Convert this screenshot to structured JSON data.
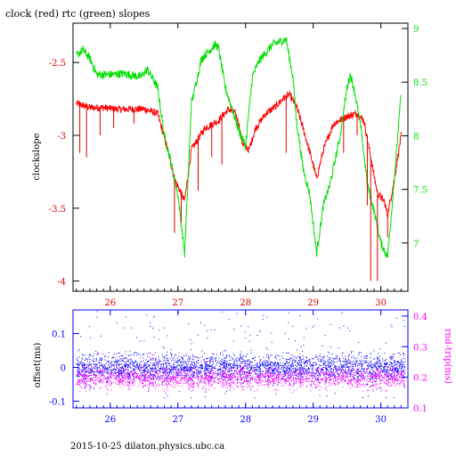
{
  "chart_data": [
    {
      "type": "line",
      "title": "clock (red) rtc (green) slopes",
      "ylabel": "clockslope",
      "y2label": "",
      "xlim": [
        25.45,
        30.4
      ],
      "ylim": [
        -4.07,
        -2.23
      ],
      "y2lim": [
        6.55,
        9.05
      ],
      "x_ticks": [
        26,
        27,
        28,
        29,
        30
      ],
      "x_tick_labels": [
        "26",
        "27",
        "28",
        "29",
        "30"
      ],
      "y_ticks": [
        -2.5,
        -3,
        -3.5,
        -4
      ],
      "y_tick_labels": [
        "-2.5",
        "-3",
        "-3.5",
        "-4"
      ],
      "y2_ticks": [
        9,
        8.5,
        8,
        7.5,
        7
      ],
      "y2_tick_labels": [
        "9",
        "8.5",
        "8",
        "7.5",
        "7"
      ],
      "colors": {
        "frame": "#000000",
        "left_axis": "#e00000",
        "right_axis": "#00e000",
        "x_axis": "#e00000"
      },
      "series": [
        {
          "name": "clock",
          "color": "#ff0000",
          "axis": "left",
          "x": [
            25.5,
            25.7,
            25.9,
            26.1,
            26.3,
            26.5,
            26.7,
            26.85,
            26.95,
            27.05,
            27.1,
            27.2,
            27.4,
            27.6,
            27.75,
            27.85,
            27.9,
            27.95,
            28.05,
            28.15,
            28.3,
            28.45,
            28.55,
            28.65,
            28.75,
            28.85,
            29.0,
            29.05,
            29.15,
            29.3,
            29.5,
            29.65,
            29.75,
            29.85,
            29.95,
            30.05,
            30.1,
            30.2,
            30.3
          ],
          "y": [
            -2.78,
            -2.81,
            -2.81,
            -2.82,
            -2.82,
            -2.82,
            -2.85,
            -3.1,
            -3.3,
            -3.4,
            -3.45,
            -3.1,
            -2.95,
            -2.9,
            -2.82,
            -2.85,
            -2.92,
            -3.05,
            -3.1,
            -2.95,
            -2.85,
            -2.8,
            -2.75,
            -2.72,
            -2.8,
            -2.95,
            -3.2,
            -3.3,
            -3.1,
            -2.92,
            -2.87,
            -2.85,
            -2.9,
            -3.15,
            -3.4,
            -3.45,
            -3.55,
            -3.3,
            -3.0
          ]
        },
        {
          "name": "rtc",
          "color": "#00e000",
          "axis": "right",
          "x": [
            25.5,
            25.6,
            25.7,
            25.8,
            26.0,
            26.2,
            26.45,
            26.55,
            26.7,
            26.8,
            26.9,
            27.0,
            27.1,
            27.2,
            27.35,
            27.55,
            27.6,
            27.7,
            27.8,
            27.9,
            28.0,
            28.1,
            28.2,
            28.4,
            28.6,
            28.7,
            28.75,
            28.85,
            28.95,
            29.05,
            29.15,
            29.25,
            29.4,
            29.5,
            29.55,
            29.6,
            29.7,
            29.8,
            29.9,
            30.0,
            30.1,
            30.2,
            30.3
          ],
          "y": [
            8.75,
            8.8,
            8.72,
            8.57,
            8.57,
            8.58,
            8.55,
            8.62,
            8.45,
            8.0,
            7.75,
            7.45,
            6.9,
            8.3,
            8.72,
            8.85,
            8.82,
            8.45,
            8.25,
            8.05,
            7.9,
            8.55,
            8.7,
            8.85,
            8.9,
            8.55,
            8.15,
            7.7,
            7.45,
            6.9,
            7.35,
            7.55,
            8.0,
            8.45,
            8.57,
            8.45,
            8.1,
            7.55,
            7.3,
            7.0,
            6.87,
            7.6,
            8.4
          ]
        }
      ],
      "spikes": [
        {
          "x": 25.55,
          "y_from": -2.78,
          "y_to": -3.12
        },
        {
          "x": 25.65,
          "y_from": -2.8,
          "y_to": -3.15
        },
        {
          "x": 25.85,
          "y_from": -2.81,
          "y_to": -3.0
        },
        {
          "x": 26.05,
          "y_from": -2.82,
          "y_to": -2.95
        },
        {
          "x": 26.35,
          "y_from": -2.82,
          "y_to": -2.92
        },
        {
          "x": 26.95,
          "y_from": -3.3,
          "y_to": -3.67
        },
        {
          "x": 27.05,
          "y_from": -3.4,
          "y_to": -3.6
        },
        {
          "x": 27.3,
          "y_from": -3.0,
          "y_to": -3.38
        },
        {
          "x": 27.5,
          "y_from": -2.92,
          "y_to": -3.15
        },
        {
          "x": 27.65,
          "y_from": -2.88,
          "y_to": -3.2
        },
        {
          "x": 28.6,
          "y_from": -2.73,
          "y_to": -3.12
        },
        {
          "x": 29.45,
          "y_from": -2.87,
          "y_to": -3.12
        },
        {
          "x": 29.65,
          "y_from": -2.85,
          "y_to": -3.0
        },
        {
          "x": 29.8,
          "y_from": -3.0,
          "y_to": -3.48
        },
        {
          "x": 29.85,
          "y_from": -3.15,
          "y_to": -4.0
        },
        {
          "x": 29.95,
          "y_from": -3.4,
          "y_to": -4.0
        },
        {
          "x": 30.1,
          "y_from": -3.55,
          "y_to": -3.7
        }
      ]
    },
    {
      "type": "scatter",
      "ylabel": "offset(ms)",
      "y2label": "rnd-trip(ms)",
      "xlim": [
        25.45,
        30.4
      ],
      "ylim": [
        -0.12,
        0.17
      ],
      "y2lim": [
        0.1,
        0.42
      ],
      "x_ticks": [
        26,
        27,
        28,
        29,
        30
      ],
      "x_tick_labels": [
        "26",
        "27",
        "28",
        "29",
        "30"
      ],
      "y_ticks": [
        0.1,
        0,
        -0.1
      ],
      "y_tick_labels": [
        "0.1",
        "0",
        "-0.1"
      ],
      "y2_ticks": [
        0.4,
        0.3,
        0.2,
        0.1
      ],
      "y2_tick_labels": [
        "0.4",
        "0.3",
        "0.2",
        "0.1"
      ],
      "colors": {
        "frame": "#0000ff",
        "left_axis": "#0000ff",
        "right_axis": "#ff00ff",
        "x_axis": "#0000ff"
      },
      "series": [
        {
          "name": "offset",
          "color": "#0000ff",
          "axis": "left",
          "x_range": [
            25.5,
            30.35
          ],
          "center": 0.0,
          "band": 0.035,
          "outlier_max": 0.16
        },
        {
          "name": "rnd-trip",
          "color": "#ff00ff",
          "axis": "right",
          "x_range": [
            25.5,
            30.35
          ],
          "center": 0.2,
          "band": 0.03,
          "outlier_max": 0.28
        }
      ]
    }
  ],
  "footer": "2015-10-25 dilaton.physics.ubc.ca"
}
